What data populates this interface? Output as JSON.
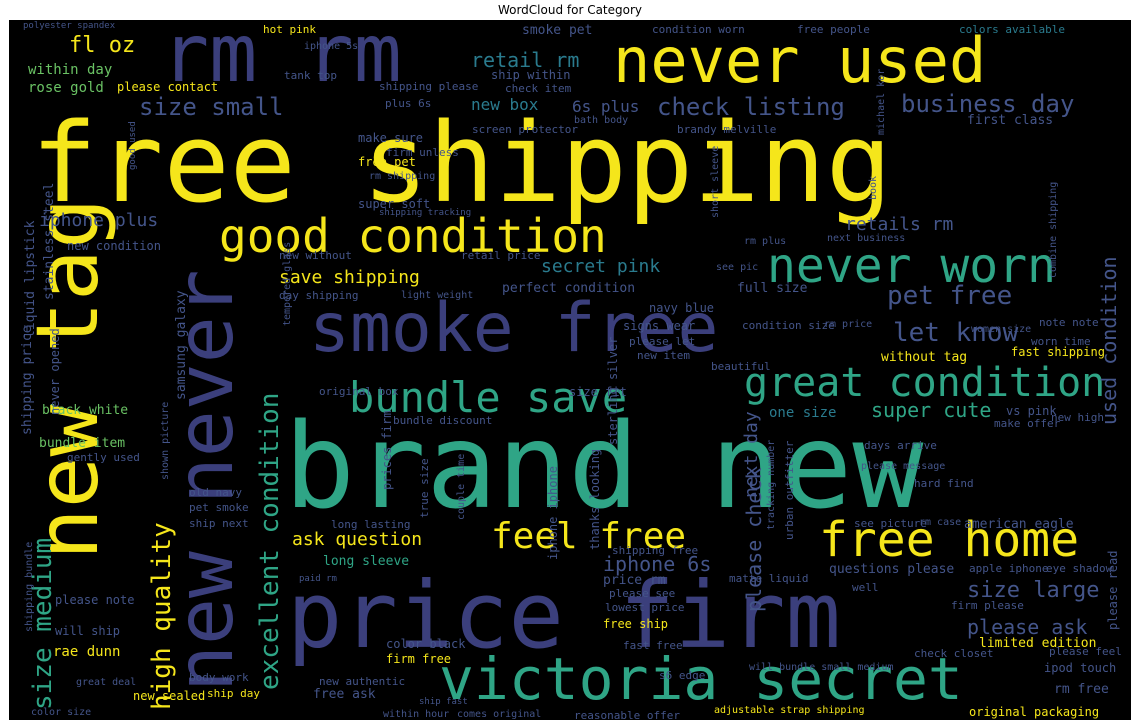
{
  "title": "WordCloud for Category",
  "words": {
    "free_shipping": "free shipping",
    "brand_new": "brand new",
    "price_firm": "price firm",
    "smoke_free": "smoke free",
    "rm_rm": "rm rm",
    "never_used": "never used",
    "new_tag": "new tag",
    "new_never": "new never",
    "victoria_secret": "victoria secret",
    "good_condition": "good condition",
    "never_worn": "never worn",
    "free_home": "free home",
    "feel_free": "feel free",
    "great_condition": "great condition",
    "bundle_save": "bundle save",
    "excellent_condition": "excellent condition",
    "size_small": "size small",
    "business_day": "business day",
    "check_listing": "check listing",
    "pet_free": "pet free",
    "let_know": "let know",
    "size_medium": "size medium",
    "high_quality": "high quality",
    "please_check": "please check",
    "size_large": "size large",
    "please_ask": "please ask",
    "iphone_6s": "iphone 6s",
    "ask_question": "ask question",
    "secret_pink": "secret pink",
    "save_shipping": "save shipping",
    "retail_rm": "retail rm",
    "iphone_plus": "iphone plus",
    "fl_oz": "fl oz",
    "super_cute": "super cute",
    "used_condition": "used condition",
    "next_day": "next day",
    "retails_rm": "retails rm",
    "new_box": "new box",
    "six_s_plus": "6s plus",
    "within_day": "within day",
    "rose_gold": "rose gold",
    "please_contact": "please contact",
    "hot_pink": "hot pink",
    "smoke_pet": "smoke pet",
    "condition_worn": "condition worn",
    "free_people": "free people",
    "colors_available": "colors available",
    "ship_within": "ship within",
    "shipping_please": "shipping please",
    "tank_top": "tank top",
    "check_item": "check item",
    "plus_6s": "plus 6s",
    "make_sure": "make sure",
    "free_pet": "free pet",
    "brandy_melville": "brandy melville",
    "first_class": "first class",
    "screen_protector": "screen protector",
    "firm_unless": "firm unless",
    "super_soft": "super soft",
    "new_condition": "new condition",
    "new_without": "new without",
    "retail_price": "retail price",
    "day_shipping": "day shipping",
    "perfect_condition": "perfect condition",
    "navy_blue": "navy blue",
    "full_size": "full size",
    "signs_wear": "signs wear",
    "please_let": "please let",
    "new_item": "new item",
    "beautiful": "beautiful",
    "original_box": "original box",
    "size_fit": "size fit",
    "one_size": "one size",
    "vs_pink": "vs pink",
    "without_tag": "without tag",
    "fast_shipping": "fast shipping",
    "black_white": "black white",
    "bundle_item": "bundle item",
    "gently_used": "gently used",
    "never_opened": "never opened",
    "shipping_price": "shipping price",
    "liquid_lipstick": "liquid lipstick",
    "stainless_steel": "stainless steel",
    "samsung_galaxy": "samsung galaxy",
    "bundle_discount": "bundle discount",
    "prices_firm": "prices firm",
    "iphone_iphone": "iphone iphone",
    "true_size": "true size",
    "thanks_looking": "thanks looking",
    "sterling_silver": "sterling silver",
    "make_offer": "make offer",
    "new_high": "new high",
    "hard_find": "hard find",
    "urban_outfitter": "urban outfitter",
    "see_picture": "see picture",
    "rm_case": "rm case",
    "american_eagle": "american eagle",
    "please_read": "please read",
    "old_navy": "old navy",
    "pet_smoke": "pet smoke",
    "ship_next": "ship next",
    "long_lasting": "long lasting",
    "long_sleeve": "long sleeve",
    "please_note": "please note",
    "will_ship": "will ship",
    "rae_dunn": "rae dunn",
    "new_sealed": "new sealed",
    "free_ask": "free ask",
    "within_hour": "within hour",
    "color_black": "color black",
    "firm_free": "firm free",
    "new_authentic": "new authentic",
    "body_work": "body work",
    "great_deal": "great deal",
    "ship_day": "ship day",
    "color_size": "color size",
    "price_rm": "price rm",
    "please_see": "please see",
    "lowest_price": "lowest price",
    "free_ship": "free ship",
    "fast_free": "fast free",
    "matte_liquid": "matte liquid",
    "questions_please": "questions please",
    "apple_iphone": "apple iphone",
    "eye_shadow": "eye shadow",
    "firm_please": "firm please",
    "limited_edition": "limited edition",
    "please_feel": "please feel",
    "ipod_touch": "ipod touch",
    "rm_free": "rm free",
    "will_bundle_small_medium": "will bundle small medium",
    "check_closet": "check closet",
    "reasonable_offer": "reasonable offer",
    "comes_original": "comes original",
    "adjustable_strap_shipping": "adjustable strap shipping",
    "original_packaging": "original packaging",
    "well": "well",
    "shipping_free": "shipping free",
    "rm_plus": "rm plus",
    "next_business": "next business",
    "combine_shipping": "combine shipping",
    "condition_size": "condition size",
    "rm_price": "rm price",
    "note_note": "note note",
    "worn_time": "worn time",
    "women_size": "women size",
    "see_pic": "see pic",
    "fifteen_pieces": "",
    "shipping_bundle": "shipping bundle",
    "iphone_5s": "iphone 5s",
    "michael_kor": "michael kor",
    "polyester_spandex": "polyester spandex",
    "good_used": "good used",
    "light_weight": "light weight",
    "tempered_glass": "tempered glass",
    "shown_picture": "shown picture",
    "couple_time": "couple time",
    "tracking_number": "tracking number",
    "s6_edge": "s6 edge",
    "days_arrive": "days arrive",
    "please_message": "please message",
    "short_sleeve": "short sleeve",
    "rm_shipping": "rm shipping",
    "shipping_tracking": "shipping tracking",
    "bath_body": "bath body",
    "book": "book",
    "paid_rm": "paid rm",
    "ship_fast": "ship fast"
  }
}
